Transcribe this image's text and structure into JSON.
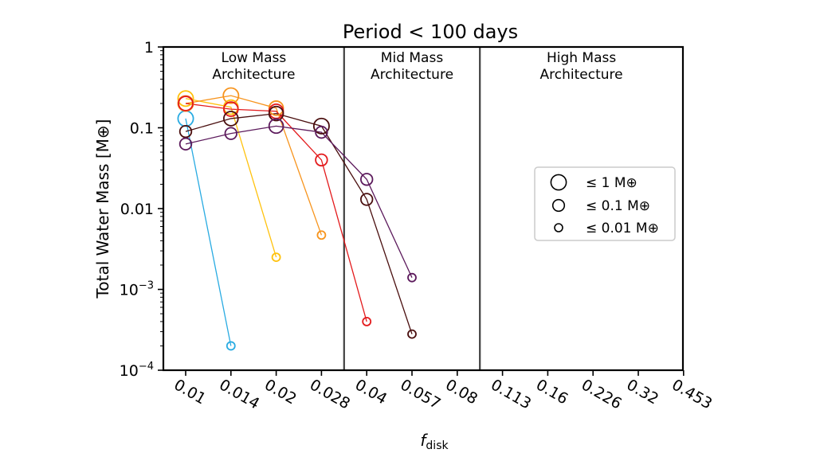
{
  "chart_data": {
    "type": "scatter",
    "title": "Period < 100 days",
    "xlabel_main": "f",
    "xlabel_sub": "disk",
    "ylabel": "Total Water Mass [M⊕]",
    "x_categories": [
      "0.01",
      "0.014",
      "0.02",
      "0.028",
      "0.04",
      "0.057",
      "0.08",
      "0.113",
      "0.16",
      "0.226",
      "0.32",
      "0.453"
    ],
    "y_scale": "log",
    "ylim": [
      0.0001,
      1
    ],
    "y_ticks": [
      {
        "value": 1,
        "label": "1"
      },
      {
        "value": 0.1,
        "label": "0.1"
      },
      {
        "value": 0.01,
        "label": "0.01"
      },
      {
        "value": 0.001,
        "label": "10",
        "sup": "−3"
      },
      {
        "value": 0.0001,
        "label": "10",
        "sup": "−4"
      }
    ],
    "region_boundaries": [
      "between 0.028 and 0.04",
      "between 0.08 and 0.113"
    ],
    "regions": [
      {
        "line1": "Low Mass",
        "line2": "Architecture"
      },
      {
        "line1": "Mid Mass",
        "line2": "Architecture"
      },
      {
        "line1": "High Mass",
        "line2": "Architecture"
      }
    ],
    "marker_size_legend": [
      {
        "label": "≤ 1 M⊕",
        "mass": 1
      },
      {
        "label": "≤ 0.1 M⊕",
        "mass": 0.1
      },
      {
        "label": "≤ 0.01 M⊕",
        "mass": 0.01
      }
    ],
    "legend_position": "center-right",
    "grid": false,
    "series": [
      {
        "color": "#29abe2",
        "points": [
          {
            "x": "0.01",
            "y": 0.13,
            "mass": 1
          },
          {
            "x": "0.014",
            "y": 0.0002,
            "mass": 0.01
          }
        ]
      },
      {
        "color": "#ffc20e",
        "points": [
          {
            "x": "0.01",
            "y": 0.23,
            "mass": 1
          },
          {
            "x": "0.014",
            "y": 0.18,
            "mass": 0.5
          },
          {
            "x": "0.02",
            "y": 0.0025,
            "mass": 0.01
          }
        ]
      },
      {
        "color": "#f7941d",
        "points": [
          {
            "x": "0.01",
            "y": 0.2,
            "mass": 1
          },
          {
            "x": "0.014",
            "y": 0.25,
            "mass": 1
          },
          {
            "x": "0.02",
            "y": 0.175,
            "mass": 0.5
          },
          {
            "x": "0.028",
            "y": 0.0047,
            "mass": 0.01
          }
        ]
      },
      {
        "color": "#e31a1c",
        "points": [
          {
            "x": "0.01",
            "y": 0.2,
            "mass": 0.5
          },
          {
            "x": "0.014",
            "y": 0.17,
            "mass": 0.5
          },
          {
            "x": "0.02",
            "y": 0.16,
            "mass": 0.5
          },
          {
            "x": "0.028",
            "y": 0.04,
            "mass": 0.1
          },
          {
            "x": "0.04",
            "y": 0.0004,
            "mass": 0.01
          }
        ]
      },
      {
        "color": "#4a0f0f",
        "points": [
          {
            "x": "0.01",
            "y": 0.09,
            "mass": 0.1
          },
          {
            "x": "0.014",
            "y": 0.13,
            "mass": 0.5
          },
          {
            "x": "0.02",
            "y": 0.15,
            "mass": 0.5
          },
          {
            "x": "0.028",
            "y": 0.105,
            "mass": 1
          },
          {
            "x": "0.04",
            "y": 0.013,
            "mass": 0.1
          },
          {
            "x": "0.057",
            "y": 0.00028,
            "mass": 0.01
          }
        ]
      },
      {
        "color": "#5c1a5c",
        "points": [
          {
            "x": "0.01",
            "y": 0.063,
            "mass": 0.1
          },
          {
            "x": "0.014",
            "y": 0.085,
            "mass": 0.1
          },
          {
            "x": "0.02",
            "y": 0.105,
            "mass": 0.5
          },
          {
            "x": "0.028",
            "y": 0.088,
            "mass": 0.1
          },
          {
            "x": "0.04",
            "y": 0.023,
            "mass": 0.1
          },
          {
            "x": "0.057",
            "y": 0.0014,
            "mass": 0.01
          }
        ]
      }
    ]
  }
}
